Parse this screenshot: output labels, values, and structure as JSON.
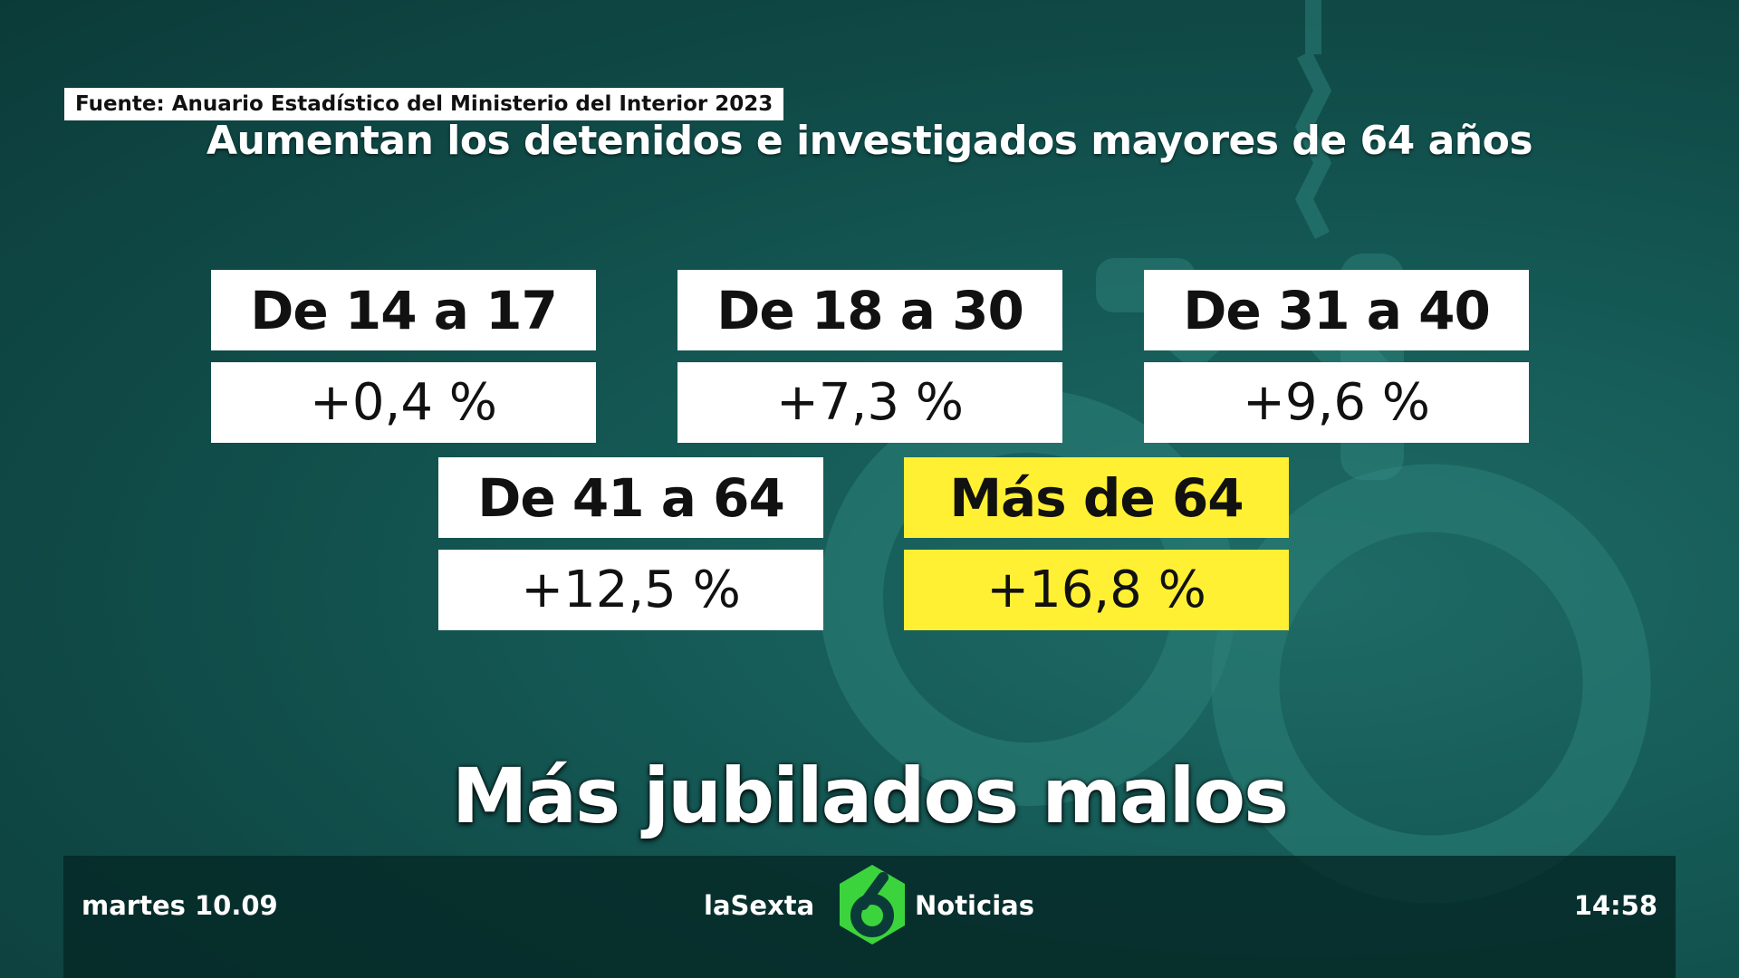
{
  "source_label": "Fuente: Anuario Estadístico del Ministerio del Interior 2023",
  "headline": "Aumentan los detenidos e investigados mayores de 64 años",
  "groups": [
    {
      "label": "De 14 a 17",
      "value": "+0,4 %"
    },
    {
      "label": "De 18 a 30",
      "value": "+7,3 %"
    },
    {
      "label": "De 31 a 40",
      "value": "+9,6 %"
    },
    {
      "label": "De 41 a 64",
      "value": "+12,5 %"
    },
    {
      "label": "Más de 64",
      "value": "+16,8 %",
      "highlight": true
    }
  ],
  "caption": "Más jubilados malos",
  "ticker": {
    "date": "martes 10.09",
    "brand_left": "laSexta",
    "brand_right": "Noticias",
    "time": "14:58",
    "logo_icon": "lasexta-six-logo-icon",
    "logo_color": "#3cd43c"
  },
  "colors": {
    "highlight": "#fff033",
    "background": "#155a56"
  }
}
